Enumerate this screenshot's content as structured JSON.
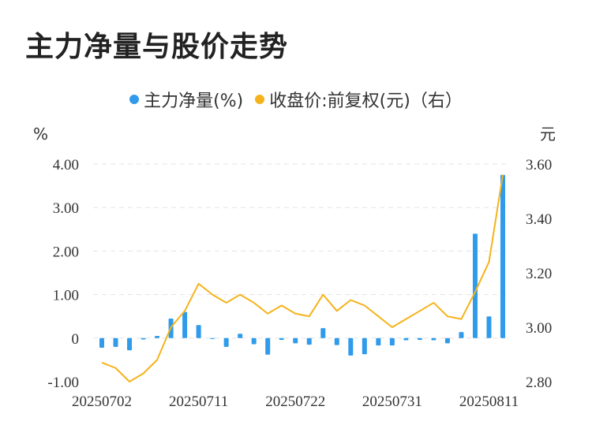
{
  "title": "主力净量与股价走势",
  "chart_data": {
    "type": "bar+line",
    "legend": [
      {
        "name": "主力净量(%)",
        "color": "#2F9BEA"
      },
      {
        "name": "收盘价:前复权(元)（右）",
        "color": "#F5B31B"
      }
    ],
    "left_axis": {
      "unit": "%",
      "ticks": [
        "4.00",
        "3.00",
        "2.00",
        "1.00",
        "0",
        "-1.00"
      ],
      "range": [
        -1,
        4
      ]
    },
    "right_axis": {
      "unit": "元",
      "ticks": [
        "3.60",
        "3.40",
        "3.20",
        "3.00",
        "2.80"
      ],
      "range": [
        2.8,
        3.6
      ]
    },
    "x_tick_labels": [
      "20250702",
      "20250711",
      "20250722",
      "20250731",
      "20250811"
    ],
    "bar_series": {
      "name": "主力净量(%)",
      "values": [
        -0.22,
        -0.2,
        -0.28,
        -0.03,
        0.05,
        0.45,
        0.6,
        0.3,
        -0.02,
        -0.2,
        0.1,
        -0.14,
        -0.38,
        -0.04,
        -0.12,
        -0.15,
        0.23,
        -0.16,
        -0.4,
        -0.37,
        -0.17,
        -0.17,
        -0.05,
        -0.04,
        -0.05,
        -0.12,
        0.14,
        2.4,
        0.5,
        3.75
      ]
    },
    "line_series": {
      "name": "收盘价:前复权(元)（右）",
      "values": [
        2.87,
        2.85,
        2.8,
        2.83,
        2.88,
        3.0,
        3.06,
        3.16,
        3.12,
        3.09,
        3.12,
        3.09,
        3.05,
        3.08,
        3.05,
        3.04,
        3.12,
        3.06,
        3.1,
        3.08,
        3.04,
        3.0,
        3.03,
        3.06,
        3.09,
        3.04,
        3.03,
        3.13,
        3.24,
        3.56
      ]
    }
  }
}
